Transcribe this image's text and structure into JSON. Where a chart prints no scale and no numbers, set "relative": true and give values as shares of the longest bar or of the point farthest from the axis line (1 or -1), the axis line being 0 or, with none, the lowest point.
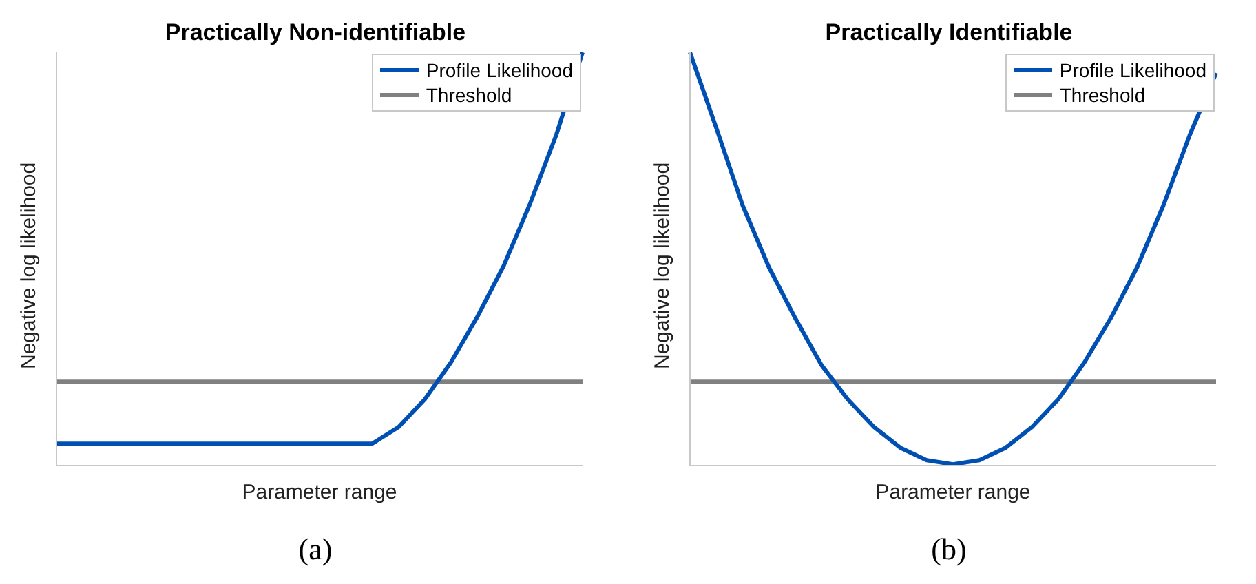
{
  "chart_data": [
    {
      "type": "line",
      "title": "Practically Non-identifiable",
      "xlabel": "Parameter range",
      "ylabel": "Negative log likelihood",
      "relative": true,
      "categories": [
        null,
        null,
        null,
        null,
        null,
        null,
        null,
        null,
        null,
        null,
        null,
        null,
        null,
        null,
        null,
        null,
        null,
        null,
        null,
        null,
        null
      ],
      "series": [
        {
          "name": "Profile Likelihood",
          "color": "#0050b4",
          "values": [
            0.053,
            0.053,
            0.053,
            0.053,
            0.053,
            0.053,
            0.053,
            0.053,
            0.053,
            0.053,
            0.053,
            0.053,
            0.053,
            0.093,
            0.16,
            0.25,
            0.36,
            0.483,
            0.633,
            0.8,
            1.0
          ]
        }
      ],
      "ref_lines": [
        {
          "axis": "y",
          "value": 0.203,
          "label": "Threshold",
          "color": "#808080"
        }
      ],
      "legend": "top right",
      "marker": "none",
      "line_style": "solid",
      "annotations": [
        "(a)"
      ]
    },
    {
      "type": "line",
      "title": "Practically Identifiable",
      "xlabel": "Parameter range",
      "ylabel": "Negative log likelihood",
      "relative": true,
      "categories": [
        null,
        null,
        null,
        null,
        null,
        null,
        null,
        null,
        null,
        null,
        null,
        null,
        null,
        null,
        null,
        null,
        null,
        null,
        null,
        null,
        null
      ],
      "series": [
        {
          "name": "Profile Likelihood",
          "color": "#0050b4",
          "values": [
            1.0,
            0.817,
            0.63,
            0.48,
            0.357,
            0.243,
            0.16,
            0.093,
            0.043,
            0.013,
            0.003,
            0.013,
            0.043,
            0.093,
            0.16,
            0.25,
            0.357,
            0.48,
            0.63,
            0.8,
            0.95
          ]
        }
      ],
      "ref_lines": [
        {
          "axis": "y",
          "value": 0.203,
          "label": "Threshold",
          "color": "#808080"
        }
      ],
      "legend": "top right",
      "marker": "none",
      "line_style": "solid",
      "annotations": [
        "(b)"
      ]
    }
  ]
}
